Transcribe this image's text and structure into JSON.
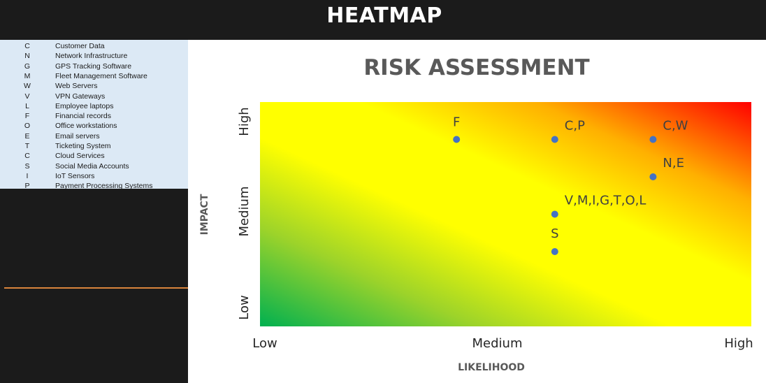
{
  "header": {
    "title": "HEATMAP"
  },
  "legend": {
    "items": [
      {
        "code": "C",
        "name": "Customer Data"
      },
      {
        "code": "N",
        "name": "Network Infrastructure"
      },
      {
        "code": "G",
        "name": "GPS Tracking Software"
      },
      {
        "code": "M",
        "name": "Fleet Management Software"
      },
      {
        "code": "W",
        "name": "Web Servers"
      },
      {
        "code": "V",
        "name": "VPN Gateways"
      },
      {
        "code": "L",
        "name": "Employee laptops"
      },
      {
        "code": "F",
        "name": "Financial records"
      },
      {
        "code": "O",
        "name": "Office workstations"
      },
      {
        "code": "E",
        "name": "Email servers"
      },
      {
        "code": "T",
        "name": "Ticketing System"
      },
      {
        "code": "C",
        "name": "Cloud Services"
      },
      {
        "code": "S",
        "name": "Social Media Accounts"
      },
      {
        "code": "I",
        "name": "IoT Sensors"
      },
      {
        "code": "P",
        "name": "Payment Processing Systems"
      }
    ]
  },
  "chart_data": {
    "type": "scatter",
    "title": "RISK ASSESSMENT",
    "xlabel": "LIKELIHOOD",
    "ylabel": "IMPACT",
    "x_ticks": [
      "Low",
      "Medium",
      "High"
    ],
    "y_ticks": [
      "Low",
      "Medium",
      "High"
    ],
    "xlim": [
      0,
      10
    ],
    "ylim": [
      0,
      6
    ],
    "grid": false,
    "background": "heatmap gradient green (low,low) to yellow to red (high,high)",
    "colors": {
      "point": "#4472c4",
      "gradient_low": "#00b050",
      "gradient_mid": "#ffff00",
      "gradient_high": "#ff0000",
      "text": "#404040",
      "title": "#595959"
    },
    "points": [
      {
        "label": "F",
        "x": 4.0,
        "y": 5.0
      },
      {
        "label": "C,P",
        "x": 6.0,
        "y": 5.0
      },
      {
        "label": "C,W",
        "x": 8.0,
        "y": 5.0
      },
      {
        "label": "N,E",
        "x": 8.0,
        "y": 4.0
      },
      {
        "label": "V,M,I,G,T,O,L",
        "x": 6.0,
        "y": 3.0
      },
      {
        "label": "S",
        "x": 6.0,
        "y": 2.0
      }
    ]
  }
}
